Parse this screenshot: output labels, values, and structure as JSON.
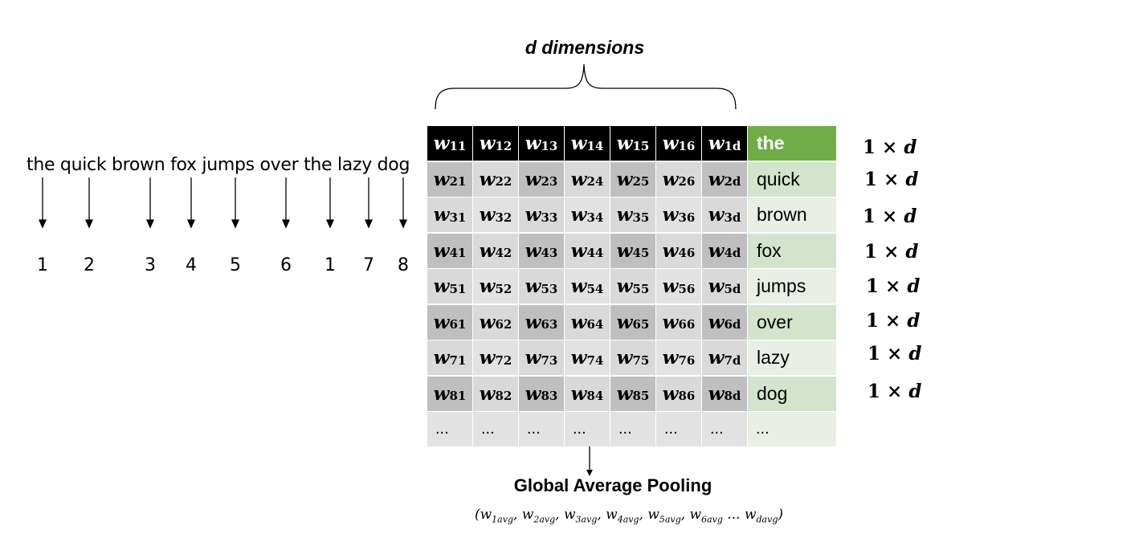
{
  "sentence": "the quick brown fox jumps over the lazy dog",
  "word_indices": [
    "1",
    "2",
    "3",
    "4",
    "5",
    "6",
    "1",
    "7",
    "8"
  ],
  "dimension_label": "d dimensions",
  "matrix": {
    "rows": [
      {
        "cells": [
          [
            "w",
            "11"
          ],
          [
            "w",
            "12"
          ],
          [
            "w",
            "13"
          ],
          [
            "w",
            "14"
          ],
          [
            "w",
            "15"
          ],
          [
            "w",
            "16"
          ],
          [
            "w",
            "1d"
          ]
        ],
        "word": "the"
      },
      {
        "cells": [
          [
            "w",
            "21"
          ],
          [
            "w",
            "22"
          ],
          [
            "w",
            "23"
          ],
          [
            "w",
            "24"
          ],
          [
            "w",
            "25"
          ],
          [
            "w",
            "26"
          ],
          [
            "w",
            "2d"
          ]
        ],
        "word": "quick"
      },
      {
        "cells": [
          [
            "w",
            "31"
          ],
          [
            "w",
            "32"
          ],
          [
            "w",
            "33"
          ],
          [
            "w",
            "34"
          ],
          [
            "w",
            "35"
          ],
          [
            "w",
            "36"
          ],
          [
            "w",
            "3d"
          ]
        ],
        "word": "brown"
      },
      {
        "cells": [
          [
            "w",
            "41"
          ],
          [
            "w",
            "42"
          ],
          [
            "w",
            "43"
          ],
          [
            "w",
            "44"
          ],
          [
            "w",
            "45"
          ],
          [
            "w",
            "46"
          ],
          [
            "w",
            "4d"
          ]
        ],
        "word": "fox"
      },
      {
        "cells": [
          [
            "w",
            "51"
          ],
          [
            "w",
            "52"
          ],
          [
            "w",
            "53"
          ],
          [
            "w",
            "54"
          ],
          [
            "w",
            "55"
          ],
          [
            "w",
            "56"
          ],
          [
            "w",
            "5d"
          ]
        ],
        "word": "jumps"
      },
      {
        "cells": [
          [
            "w",
            "61"
          ],
          [
            "w",
            "62"
          ],
          [
            "w",
            "63"
          ],
          [
            "w",
            "64"
          ],
          [
            "w",
            "65"
          ],
          [
            "w",
            "66"
          ],
          [
            "w",
            "6d"
          ]
        ],
        "word": "over"
      },
      {
        "cells": [
          [
            "w",
            "71"
          ],
          [
            "w",
            "72"
          ],
          [
            "w",
            "73"
          ],
          [
            "w",
            "74"
          ],
          [
            "w",
            "75"
          ],
          [
            "w",
            "76"
          ],
          [
            "w",
            "7d"
          ]
        ],
        "word": "lazy"
      },
      {
        "cells": [
          [
            "w",
            "81"
          ],
          [
            "w",
            "82"
          ],
          [
            "w",
            "83"
          ],
          [
            "w",
            "84"
          ],
          [
            "w",
            "85"
          ],
          [
            "w",
            "86"
          ],
          [
            "w",
            "8d"
          ]
        ],
        "word": "dog"
      }
    ],
    "ellipsis": "..."
  },
  "row_dimension": {
    "one": "1",
    "times": "×",
    "d": "d"
  },
  "pooling": {
    "title": "Global Average Pooling",
    "vector": [
      [
        "w",
        "1avg"
      ],
      [
        "w",
        "2avg"
      ],
      [
        "w",
        "3avg"
      ],
      [
        "w",
        "4avg"
      ],
      [
        "w",
        "5avg"
      ],
      [
        "w",
        "6avg"
      ],
      [
        "w",
        "davg"
      ]
    ],
    "ellipsis": "..."
  },
  "colors": {
    "header_bg": "#000000",
    "word_header": "#70ad47",
    "word_light": "#d4e3cb",
    "cell_gray": "#bfbfbf"
  }
}
